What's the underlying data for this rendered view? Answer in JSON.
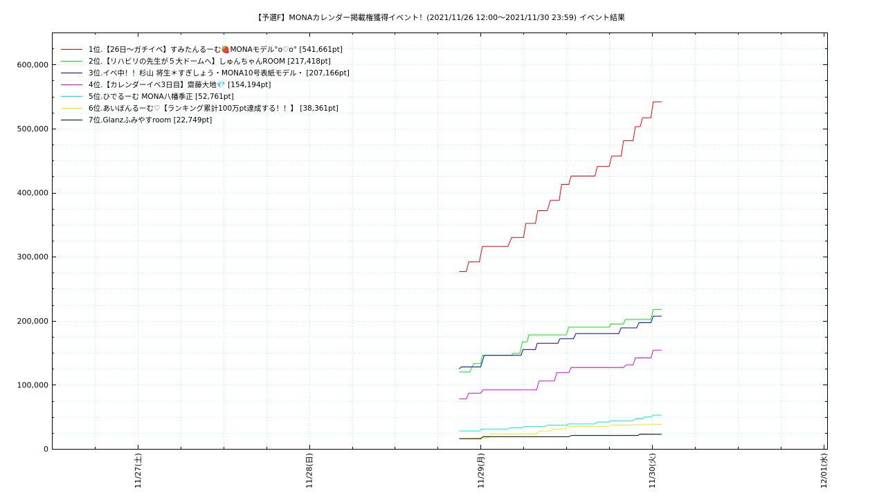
{
  "chart_data": {
    "type": "line",
    "title": "【予選F】MONAカレンダー掲載権獲得イベント！(2021/11/26 12:00〜2021/11/30 23:59)",
    "subtitle": "イベント結果",
    "xlabel": "",
    "ylabel": "",
    "x_tick_labels": [
      "11/27(土)",
      "11/28(日)",
      "11/29(月)",
      "11/30(火)",
      "12/01(水)"
    ],
    "x_range": [
      "2021-11-26 12:00",
      "2021-12-01 00:30"
    ],
    "ylim": [
      0,
      650000
    ],
    "y_ticks": [
      0,
      100000,
      200000,
      300000,
      400000,
      500000,
      600000
    ],
    "y_tick_labels": [
      "0",
      "100,000",
      "200,000",
      "300,000",
      "400,000",
      "500,000",
      "600,000"
    ],
    "grid": true,
    "legend_position": "top-left",
    "series": [
      {
        "name": "1位.【26日〜ガチイベ】すみたんるーむ🍓MONAモデル°o♡o° [541,661pt]",
        "color": "#ff0000",
        "points": [
          [
            "2021-11-28 21:00",
            277000
          ],
          [
            "2021-11-28 22:00",
            277000
          ],
          [
            "2021-11-28 22:20",
            292000
          ],
          [
            "2021-11-28 23:50",
            292000
          ],
          [
            "2021-11-29 00:15",
            316000
          ],
          [
            "2021-11-29 03:50",
            316000
          ],
          [
            "2021-11-29 04:20",
            330000
          ],
          [
            "2021-11-29 06:00",
            330000
          ],
          [
            "2021-11-29 06:20",
            352000
          ],
          [
            "2021-11-29 07:40",
            352000
          ],
          [
            "2021-11-29 08:00",
            372000
          ],
          [
            "2021-11-29 09:20",
            372000
          ],
          [
            "2021-11-29 09:45",
            388000
          ],
          [
            "2021-11-29 11:00",
            388000
          ],
          [
            "2021-11-29 11:20",
            413000
          ],
          [
            "2021-11-29 12:20",
            413000
          ],
          [
            "2021-11-29 12:40",
            426000
          ],
          [
            "2021-11-29 16:00",
            426000
          ],
          [
            "2021-11-29 16:20",
            441000
          ],
          [
            "2021-11-29 18:00",
            441000
          ],
          [
            "2021-11-29 18:20",
            457000
          ],
          [
            "2021-11-29 19:40",
            457000
          ],
          [
            "2021-11-29 20:00",
            481000
          ],
          [
            "2021-11-29 21:20",
            481000
          ],
          [
            "2021-11-29 21:40",
            503000
          ],
          [
            "2021-11-29 22:20",
            503000
          ],
          [
            "2021-11-29 22:40",
            517000
          ],
          [
            "2021-11-29 23:50",
            517000
          ],
          [
            "2021-11-30 00:10",
            541661
          ],
          [
            "2021-11-30 01:20",
            541661
          ]
        ]
      },
      {
        "name": "2位.【リハビリの先生が５大ドームへ】しゅんちゃんROOM [217,418pt]",
        "color": "#00ee00",
        "points": [
          [
            "2021-11-28 21:00",
            120000
          ],
          [
            "2021-11-28 22:30",
            120000
          ],
          [
            "2021-11-28 23:00",
            133000
          ],
          [
            "2021-11-29 00:00",
            133000
          ],
          [
            "2021-11-29 00:15",
            146000
          ],
          [
            "2021-11-29 04:20",
            146000
          ],
          [
            "2021-11-29 04:30",
            149000
          ],
          [
            "2021-11-29 05:30",
            149000
          ],
          [
            "2021-11-29 05:50",
            167000
          ],
          [
            "2021-11-29 06:30",
            167000
          ],
          [
            "2021-11-29 06:45",
            178000
          ],
          [
            "2021-11-29 12:00",
            178000
          ],
          [
            "2021-11-29 12:20",
            190000
          ],
          [
            "2021-11-29 18:00",
            190000
          ],
          [
            "2021-11-29 18:15",
            195000
          ],
          [
            "2021-11-29 20:00",
            195000
          ],
          [
            "2021-11-29 20:15",
            202000
          ],
          [
            "2021-11-29 23:50",
            202000
          ],
          [
            "2021-11-30 00:10",
            217418
          ],
          [
            "2021-11-30 01:20",
            217418
          ]
        ]
      },
      {
        "name": "3位.イベ中！！杉山 将生＊すぎしょう・MONA10号表紙モデル・ [207,166pt]",
        "color": "#0000cc",
        "points": [
          [
            "2021-11-28 21:00",
            125000
          ],
          [
            "2021-11-28 21:20",
            128000
          ],
          [
            "2021-11-29 00:00",
            128000
          ],
          [
            "2021-11-29 00:30",
            146000
          ],
          [
            "2021-11-29 05:40",
            146000
          ],
          [
            "2021-11-29 05:55",
            155000
          ],
          [
            "2021-11-29 07:40",
            155000
          ],
          [
            "2021-11-29 07:55",
            165000
          ],
          [
            "2021-11-29 10:50",
            165000
          ],
          [
            "2021-11-29 11:05",
            172000
          ],
          [
            "2021-11-29 13:00",
            172000
          ],
          [
            "2021-11-29 13:20",
            180000
          ],
          [
            "2021-11-29 19:20",
            180000
          ],
          [
            "2021-11-29 19:40",
            189000
          ],
          [
            "2021-11-29 21:50",
            189000
          ],
          [
            "2021-11-29 22:10",
            197000
          ],
          [
            "2021-11-29 23:50",
            197000
          ],
          [
            "2021-11-30 00:10",
            207166
          ],
          [
            "2021-11-30 01:20",
            207166
          ]
        ]
      },
      {
        "name": "4位.【カレンダーイベ3日目】齋藤大地💎 [154,194pt]",
        "color": "#ee00ee",
        "points": [
          [
            "2021-11-28 21:00",
            78000
          ],
          [
            "2021-11-28 22:00",
            78000
          ],
          [
            "2021-11-28 22:20",
            87000
          ],
          [
            "2021-11-29 00:00",
            87000
          ],
          [
            "2021-11-29 00:20",
            92000
          ],
          [
            "2021-11-29 07:50",
            92000
          ],
          [
            "2021-11-29 08:10",
            106000
          ],
          [
            "2021-11-29 10:20",
            106000
          ],
          [
            "2021-11-29 10:40",
            119000
          ],
          [
            "2021-11-29 12:20",
            119000
          ],
          [
            "2021-11-29 12:40",
            127000
          ],
          [
            "2021-11-29 20:00",
            127000
          ],
          [
            "2021-11-29 20:20",
            131000
          ],
          [
            "2021-11-29 21:20",
            131000
          ],
          [
            "2021-11-29 21:40",
            142000
          ],
          [
            "2021-11-29 23:50",
            142000
          ],
          [
            "2021-11-30 00:10",
            154194
          ],
          [
            "2021-11-30 01:20",
            154194
          ]
        ]
      },
      {
        "name": "5位.ひでるーむ MONA八幡季正 [52,761pt]",
        "color": "#00eeee",
        "points": [
          [
            "2021-11-28 21:00",
            28000
          ],
          [
            "2021-11-28 23:50",
            28000
          ],
          [
            "2021-11-29 00:10",
            31000
          ],
          [
            "2021-11-29 03:50",
            31000
          ],
          [
            "2021-11-29 04:10",
            33000
          ],
          [
            "2021-11-29 05:50",
            33000
          ],
          [
            "2021-11-29 06:10",
            35000
          ],
          [
            "2021-11-29 09:00",
            35000
          ],
          [
            "2021-11-29 09:20",
            37000
          ],
          [
            "2021-11-29 12:00",
            37000
          ],
          [
            "2021-11-29 12:20",
            39000
          ],
          [
            "2021-11-29 16:00",
            39000
          ],
          [
            "2021-11-29 16:20",
            42000
          ],
          [
            "2021-11-29 18:00",
            42000
          ],
          [
            "2021-11-29 18:20",
            44000
          ],
          [
            "2021-11-29 21:20",
            44000
          ],
          [
            "2021-11-29 21:40",
            47000
          ],
          [
            "2021-11-29 22:40",
            47000
          ],
          [
            "2021-11-29 23:00",
            50000
          ],
          [
            "2021-11-29 23:50",
            50000
          ],
          [
            "2021-11-30 00:10",
            52761
          ],
          [
            "2021-11-30 01:20",
            52761
          ]
        ]
      },
      {
        "name": "6位.あいぼんるーむ♡【ランキング累計100万pt達成する！！】 [38,361pt]",
        "color": "#eeee00",
        "points": [
          [
            "2021-11-28 21:00",
            16000
          ],
          [
            "2021-11-28 23:50",
            17000
          ],
          [
            "2021-11-29 01:00",
            17000
          ],
          [
            "2021-11-29 01:20",
            23000
          ],
          [
            "2021-11-29 07:50",
            23000
          ],
          [
            "2021-11-29 08:10",
            28000
          ],
          [
            "2021-11-29 09:50",
            28000
          ],
          [
            "2021-11-29 10:10",
            31000
          ],
          [
            "2021-11-29 11:50",
            31000
          ],
          [
            "2021-11-29 12:10",
            35000
          ],
          [
            "2021-11-29 17:50",
            35000
          ],
          [
            "2021-11-29 18:10",
            37000
          ],
          [
            "2021-11-30 01:20",
            38361
          ]
        ]
      },
      {
        "name": "7位.Glanzふみやすroom [22,749pt]",
        "color": "#000000",
        "points": [
          [
            "2021-11-28 21:00",
            16000
          ],
          [
            "2021-11-29 00:00",
            16000
          ],
          [
            "2021-11-29 00:20",
            19000
          ],
          [
            "2021-11-29 12:20",
            19000
          ],
          [
            "2021-11-29 12:40",
            21000
          ],
          [
            "2021-11-29 22:00",
            21000
          ],
          [
            "2021-11-29 22:20",
            23000
          ],
          [
            "2021-11-30 01:20",
            22749
          ]
        ]
      }
    ]
  }
}
